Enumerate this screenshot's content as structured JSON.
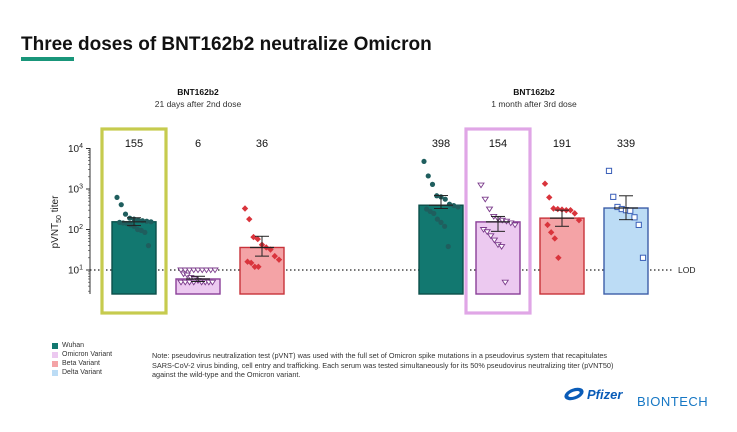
{
  "slide": {
    "title": "Three doses of BNT162b2 neutralize Omicron",
    "accent_color": "#19967a",
    "note": "Note: pseudovirus neutralization test (pVNT) was used with the full set of Omicron spike mutations in a pseudovirus system that recapitulates SARS-CoV-2 virus binding, cell entry and trafficking. Each serum was tested simultaneously for its 50% pseudovirus neutralizing titer (pVNT50) against the wild-type and the Omicron variant.",
    "logos": {
      "pfizer": "Pfizer",
      "biontech": "BIONTECH"
    }
  },
  "chart_data": {
    "type": "bar",
    "y_scale": "log10",
    "ylabel_main": "pVNT",
    "ylabel_sub": "50",
    "ylabel_tail": " titer",
    "ylim": [
      2.5,
      10000
    ],
    "y_ticks": [
      {
        "value": 10,
        "base": "10",
        "exp": "1"
      },
      {
        "value": 100,
        "base": "10",
        "exp": "2"
      },
      {
        "value": 1000,
        "base": "10",
        "exp": "3"
      },
      {
        "value": 10000,
        "base": "10",
        "exp": "4"
      }
    ],
    "lod": {
      "value": 10,
      "label": "LOD"
    },
    "groups": [
      {
        "name": "BNT162b2",
        "subtitle": "21 days after 2nd dose"
      },
      {
        "name": "BNT162b2",
        "subtitle": "1 month after 3rd dose"
      }
    ],
    "legend": [
      {
        "label": "Wuhan",
        "color": "#127870"
      },
      {
        "label": "Omicron Variant",
        "color": "#ecc9f0"
      },
      {
        "label": "Beta Variant",
        "color": "#f4a3a6"
      },
      {
        "label": "Delta Variant",
        "color": "#bcdcf5"
      }
    ],
    "bars": [
      {
        "group": 0,
        "variant": "Wuhan",
        "value": 155,
        "label": "155",
        "err": [
          125,
          195
        ],
        "fill": "#127870",
        "stroke": "#0c4f4a",
        "marker": "circle",
        "marker_color": "#1f5e5e",
        "highlight": "#c6cb4e",
        "points": [
          620,
          410,
          240,
          190,
          180,
          170,
          165,
          160,
          155,
          150,
          145,
          140,
          130,
          120,
          100,
          95,
          85,
          40
        ]
      },
      {
        "group": 0,
        "variant": "Omicron Variant",
        "value": 6,
        "label": "6",
        "err": [
          5.2,
          7
        ],
        "fill": "#ecc9f0",
        "stroke": "#8a3f98",
        "marker": "triangle-down",
        "marker_color": "#7a3a8a",
        "highlight": null,
        "points": [
          10,
          10,
          10,
          10,
          10,
          10,
          10,
          10,
          10,
          8,
          7.5,
          6.5,
          6,
          5.5,
          5,
          5,
          5,
          5,
          5,
          5,
          5,
          5
        ]
      },
      {
        "group": 0,
        "variant": "Beta Variant",
        "value": 36,
        "label": "36",
        "err": [
          22,
          68
        ],
        "fill": "#f4a3a6",
        "stroke": "#c8323a",
        "marker": "diamond",
        "marker_color": "#d9343c",
        "highlight": null,
        "points": [
          330,
          180,
          65,
          58,
          42,
          36,
          32,
          22,
          18,
          16,
          15,
          12,
          12
        ]
      },
      {
        "group": 1,
        "variant": "Wuhan",
        "value": 398,
        "label": "398",
        "err": [
          330,
          690
        ],
        "fill": "#127870",
        "stroke": "#0c4f4a",
        "marker": "circle",
        "marker_color": "#1f5e5e",
        "highlight": null,
        "points": [
          4800,
          2100,
          1300,
          680,
          640,
          560,
          420,
          390,
          360,
          320,
          280,
          250,
          180,
          150,
          120,
          38
        ]
      },
      {
        "group": 1,
        "variant": "Omicron Variant",
        "value": 154,
        "label": "154",
        "err": [
          90,
          210
        ],
        "fill": "#ecc9f0",
        "stroke": "#8a3f98",
        "marker": "triangle-down",
        "marker_color": "#7a3a8a",
        "highlight": "#e0a6e6",
        "points": [
          1250,
          560,
          320,
          210,
          185,
          170,
          160,
          145,
          130,
          100,
          88,
          70,
          55,
          42,
          38,
          5
        ]
      },
      {
        "group": 1,
        "variant": "Beta Variant",
        "value": 191,
        "label": "191",
        "err": [
          120,
          300
        ],
        "fill": "#f4a3a6",
        "stroke": "#c8323a",
        "marker": "diamond",
        "marker_color": "#d9343c",
        "highlight": null,
        "points": [
          1350,
          620,
          330,
          320,
          310,
          300,
          300,
          250,
          170,
          130,
          85,
          60,
          20
        ]
      },
      {
        "group": 1,
        "variant": "Delta Variant",
        "value": 339,
        "label": "339",
        "err": [
          175,
          680
        ],
        "fill": "#bcdcf5",
        "stroke": "#3d5ea8",
        "marker": "square",
        "marker_color": "#3a5fb8",
        "highlight": null,
        "points": [
          2800,
          640,
          360,
          320,
          300,
          290,
          200,
          130,
          20
        ]
      }
    ]
  }
}
